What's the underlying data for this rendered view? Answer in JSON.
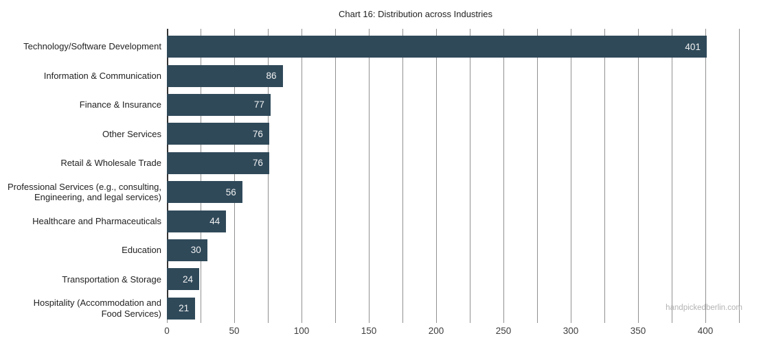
{
  "title": "Chart 16: Distribution across Industries",
  "watermark": "handpickedberlin.com",
  "colors": {
    "bar": "#2f4959",
    "grid": "#8f8f8f",
    "axis": "#333333",
    "value_label": "#f2f2f2",
    "text": "#212121",
    "watermark": "#b3b3b3"
  },
  "chart_data": {
    "type": "bar",
    "orientation": "horizontal",
    "title": "Chart 16: Distribution across Industries",
    "categories": [
      "Technology/Software Development",
      "Information & Communication",
      "Finance & Insurance",
      "Other Services",
      "Retail & Wholesale Trade",
      "Professional Services (e.g., consulting,\nEngineering, and legal services)",
      "Healthcare and Pharmaceuticals",
      "Education",
      "Transportation & Storage",
      "Hospitality (Accommodation and\nFood Services)"
    ],
    "values": [
      401,
      86,
      77,
      76,
      76,
      56,
      44,
      30,
      24,
      21
    ],
    "x_ticks": [
      0,
      50,
      100,
      150,
      200,
      250,
      300,
      350,
      400
    ],
    "xlim": [
      0,
      435
    ],
    "xlabel": "",
    "ylabel": "",
    "grid": "vertical gridlines every 25 units",
    "legend": "none",
    "value_label_position": "inside bar end, white"
  }
}
